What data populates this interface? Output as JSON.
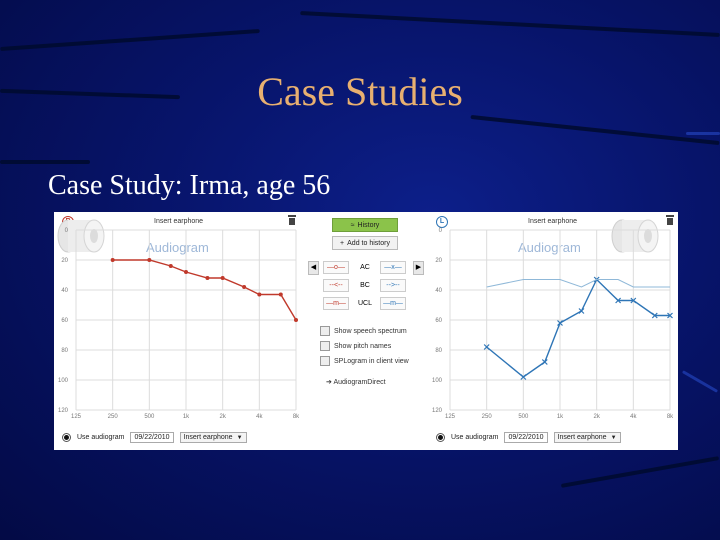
{
  "slide": {
    "title": "Case Studies",
    "subtitle": "Case Study:  Irma, age 56"
  },
  "colors": {
    "right_ear": "#c0392b",
    "left_ear": "#2e75b6",
    "history_button": "#8bc34a",
    "background": "#07146a"
  },
  "left_panel": {
    "ear_symbol": "R",
    "earphone_label": "Insert earphone",
    "watermark": "Audiogram",
    "x_ticks": [
      "125",
      "250",
      "500",
      "1k",
      "2k",
      "4k",
      "8k"
    ],
    "y_ticks": [
      "0",
      "20",
      "40",
      "60",
      "80",
      "100",
      "120"
    ],
    "use_audiogram_label": "Use audiogram",
    "date": "09/22/2010",
    "transducer": "Insert earphone"
  },
  "right_panel": {
    "ear_symbol": "L",
    "earphone_label": "Insert earphone",
    "watermark": "Audiogram",
    "x_ticks": [
      "125",
      "250",
      "500",
      "1k",
      "2k",
      "4k",
      "8k"
    ],
    "y_ticks": [
      "0",
      "20",
      "40",
      "60",
      "80",
      "100",
      "120"
    ],
    "use_audiogram_label": "Use audiogram",
    "date": "09/22/2010",
    "transducer": "Insert earphone"
  },
  "center_controls": {
    "history_label": "History",
    "add_history_label": "Add to history",
    "symbols": {
      "ac_label": "AC",
      "bc_label": "BC",
      "ucl_label": "UCL"
    },
    "checkboxes": [
      {
        "label": "Show speech spectrum",
        "checked": false
      },
      {
        "label": "Show pitch names",
        "checked": false
      },
      {
        "label": "SPLogram in client view",
        "checked": false
      }
    ],
    "link_label": "AudiogramDirect"
  },
  "chart_data": [
    {
      "type": "line",
      "title": "",
      "ear": "right",
      "x": [
        "125",
        "250",
        "500",
        "1k",
        "2k",
        "4k",
        "8k"
      ],
      "ylim": [
        0,
        120
      ],
      "y_axis_inverted": true,
      "grid": true,
      "series": [
        {
          "marker": "o",
          "color": "#c0392b",
          "points": [
            {
              "x": 250,
              "y": 20
            },
            {
              "x": 500,
              "y": 20
            },
            {
              "x": 750,
              "y": 24
            },
            {
              "x": 1000,
              "y": 28
            },
            {
              "x": 1500,
              "y": 32
            },
            {
              "x": 2000,
              "y": 32
            },
            {
              "x": 3000,
              "y": 38
            },
            {
              "x": 4000,
              "y": 43
            },
            {
              "x": 6000,
              "y": 43
            },
            {
              "x": 8000,
              "y": 60
            }
          ]
        }
      ]
    },
    {
      "type": "line",
      "title": "",
      "ear": "left",
      "x": [
        "125",
        "250",
        "500",
        "1k",
        "2k",
        "4k",
        "8k"
      ],
      "ylim": [
        0,
        120
      ],
      "y_axis_inverted": true,
      "grid": true,
      "series": [
        {
          "marker": "x",
          "color": "#2e75b6",
          "points": [
            {
              "x": 250,
              "y": 78
            },
            {
              "x": 500,
              "y": 98
            },
            {
              "x": 750,
              "y": 88
            },
            {
              "x": 1000,
              "y": 62
            },
            {
              "x": 1500,
              "y": 54
            },
            {
              "x": 2000,
              "y": 33
            },
            {
              "x": 3000,
              "y": 47
            },
            {
              "x": 4000,
              "y": 47
            },
            {
              "x": 6000,
              "y": 57
            },
            {
              "x": 8000,
              "y": 57
            }
          ]
        },
        {
          "marker": "none",
          "color": "#8fb8d8",
          "points": [
            {
              "x": 250,
              "y": 38
            },
            {
              "x": 500,
              "y": 33
            },
            {
              "x": 1000,
              "y": 33
            },
            {
              "x": 1500,
              "y": 38
            },
            {
              "x": 2000,
              "y": 33
            },
            {
              "x": 3000,
              "y": 33
            },
            {
              "x": 4000,
              "y": 38
            },
            {
              "x": 8000,
              "y": 38
            }
          ]
        }
      ]
    }
  ]
}
